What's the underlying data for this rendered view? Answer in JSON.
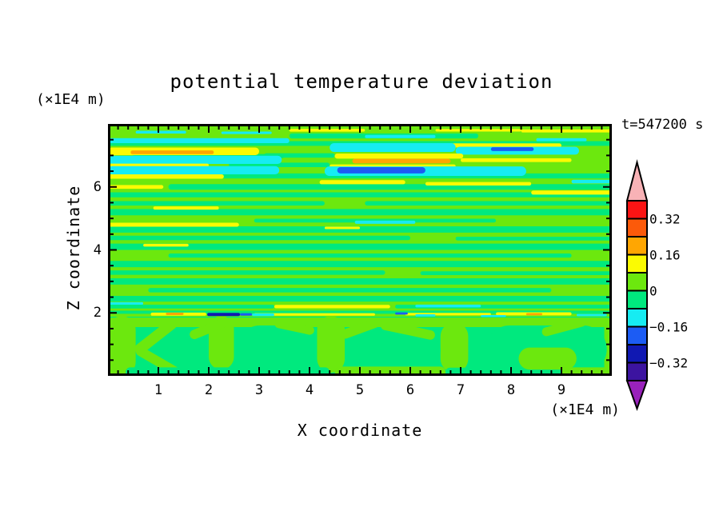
{
  "chart_data": {
    "type": "heatmap",
    "title": "potential temperature deviation",
    "time": "t=547200 s",
    "xlabel": "X coordinate",
    "ylabel": "Z coordinate",
    "x_unit": "(×1E4 m)",
    "z_unit": "(×1E4 m)",
    "contour_interval": 0.08,
    "x_axis": {
      "min": 0,
      "max": 10,
      "major_ticks": [
        1,
        2,
        3,
        4,
        5,
        6,
        7,
        8,
        9
      ],
      "minor_step": 0.2
    },
    "z_axis": {
      "min": 0,
      "max": 8,
      "major_ticks": [
        2,
        4,
        6
      ],
      "minor_step": 0.5
    },
    "palette": {
      "red": "#fa1414",
      "orangered": "#fc5a0a",
      "orange": "#ffa602",
      "yellow": "#fbfb02",
      "chartreuse": "#6ce80e",
      "spring": "#00e97e",
      "cyan": "#16ecf2",
      "blue": "#1c5cf4",
      "navy": "#1018b2",
      "indigo": "#3c14a0",
      "pink": "#f8b2b6",
      "purple": "#9922bb"
    },
    "colorbar": {
      "over_arrow_color": "pink",
      "under_arrow_color": "purple",
      "segments": [
        {
          "color": "red",
          "range": [
            0.32,
            0.4
          ],
          "boundary_label": "0.32"
        },
        {
          "color": "orangered",
          "range": [
            0.24,
            0.32
          ],
          "boundary_label": ""
        },
        {
          "color": "orange",
          "range": [
            0.16,
            0.24
          ],
          "boundary_label": "0.16"
        },
        {
          "color": "yellow",
          "range": [
            0.08,
            0.16
          ],
          "boundary_label": ""
        },
        {
          "color": "chartreuse",
          "range": [
            0.0,
            0.08
          ],
          "boundary_label": "0"
        },
        {
          "color": "spring",
          "range": [
            -0.08,
            0.0
          ],
          "boundary_label": ""
        },
        {
          "color": "cyan",
          "range": [
            -0.16,
            -0.08
          ],
          "boundary_label": "−0.16"
        },
        {
          "color": "blue",
          "range": [
            -0.24,
            -0.16
          ],
          "boundary_label": ""
        },
        {
          "color": "navy",
          "range": [
            -0.32,
            -0.24
          ],
          "boundary_label": "−0.32"
        },
        {
          "color": "indigo",
          "range": [
            -0.4,
            -0.32
          ],
          "boundary_label": ""
        }
      ]
    },
    "field": {
      "upper_background": "chartreuse",
      "lower_background": "spring",
      "lower_top_z": 1.88,
      "stripes": [
        [
          7.62,
          0.16,
          3.6,
          7.35
        ],
        [
          7.38,
          0.15,
          0,
          10
        ],
        [
          7.0,
          0.14,
          3.1,
          4.5
        ],
        [
          6.98,
          0.13,
          0.5,
          3.5
        ],
        [
          6.7,
          0.14,
          2.4,
          4.4
        ],
        [
          6.35,
          0.16,
          0,
          10
        ],
        [
          6.0,
          0.18,
          1.2,
          10
        ],
        [
          5.75,
          0.16,
          0,
          10
        ],
        [
          5.48,
          0.14,
          0,
          4.3
        ],
        [
          5.48,
          0.14,
          5.1,
          10
        ],
        [
          5.2,
          0.2,
          0,
          10
        ],
        [
          4.93,
          0.12,
          2.9,
          7.7
        ],
        [
          4.65,
          0.2,
          0,
          10
        ],
        [
          4.38,
          0.14,
          0,
          6.0
        ],
        [
          4.36,
          0.12,
          6.9,
          10
        ],
        [
          4.1,
          0.2,
          0,
          10
        ],
        [
          3.82,
          0.13,
          1.2,
          9.2
        ],
        [
          3.55,
          0.2,
          0,
          10
        ],
        [
          3.28,
          0.14,
          0,
          5.5
        ],
        [
          3.26,
          0.12,
          6.2,
          10
        ],
        [
          3.0,
          0.2,
          0,
          10
        ],
        [
          2.72,
          0.14,
          0.8,
          8.8
        ],
        [
          2.45,
          0.18,
          0,
          10
        ],
        [
          2.2,
          0.12,
          0,
          3.3
        ],
        [
          2.2,
          0.12,
          5.7,
          10
        ],
        [
          2.02,
          0.1,
          0,
          10
        ]
      ],
      "lower_shapes": [
        [
          "chartreuse",
          1.7,
          0.3,
          0,
          10,
          0
        ],
        [
          "chartreuse",
          0.95,
          1.9,
          0,
          0.55,
          0
        ],
        [
          "chartreuse",
          1.05,
          1.7,
          2.0,
          2.5,
          0
        ],
        [
          "chartreuse",
          1.0,
          1.8,
          4.15,
          4.7,
          0
        ],
        [
          "chartreuse",
          0.9,
          1.6,
          6.6,
          7.15,
          0
        ],
        [
          "chartreuse",
          0.9,
          1.8,
          9.85,
          10,
          0
        ],
        [
          "spring",
          0.8,
          1.45,
          0.6,
          1.95,
          0
        ],
        [
          "spring",
          0.85,
          1.5,
          2.55,
          4.1,
          0
        ],
        [
          "spring",
          0.8,
          1.15,
          4.95,
          6.6,
          0
        ],
        [
          "spring",
          0.85,
          1.5,
          7.5,
          9.9,
          0
        ],
        [
          "chartreuse",
          1.25,
          0.34,
          0.45,
          1.45,
          -38
        ],
        [
          "chartreuse",
          0.45,
          0.3,
          0.5,
          1.5,
          30
        ],
        [
          "chartreuse",
          1.5,
          0.3,
          1.6,
          2.4,
          -22
        ],
        [
          "chartreuse",
          1.55,
          0.28,
          3.3,
          4.1,
          12
        ],
        [
          "chartreuse",
          1.5,
          0.3,
          4.6,
          5.4,
          -20
        ],
        [
          "chartreuse",
          1.45,
          0.3,
          5.4,
          6.5,
          12
        ],
        [
          "chartreuse",
          1.55,
          0.28,
          8.6,
          9.5,
          -15
        ],
        [
          "spring",
          0.12,
          0.3,
          0.35,
          4.4,
          0
        ],
        [
          "spring",
          0.12,
          0.28,
          6.7,
          8.9,
          0
        ],
        [
          "chartreuse",
          0.55,
          0.7,
          8.15,
          9.3,
          0
        ],
        [
          "chartreuse",
          0.2,
          0.5,
          0,
          0.32,
          0
        ],
        [
          "chartreuse",
          0.12,
          0.35,
          4.5,
          6.7,
          0
        ],
        [
          "chartreuse",
          0.12,
          0.3,
          9.0,
          10,
          0
        ]
      ],
      "overlays": [
        [
          "cyan",
          7.47,
          0.16,
          0,
          3.6
        ],
        [
          "yellow",
          7.13,
          0.24,
          0,
          3.0
        ],
        [
          "orange",
          7.1,
          0.12,
          0.45,
          2.1
        ],
        [
          "cyan",
          6.86,
          0.26,
          0,
          3.45
        ],
        [
          "yellow",
          6.69,
          0.1,
          0,
          2.0
        ],
        [
          "cyan",
          6.53,
          0.26,
          0,
          3.4
        ],
        [
          "yellow",
          6.33,
          0.14,
          0,
          2.3
        ],
        [
          "yellow",
          6.0,
          0.12,
          0,
          1.1
        ],
        [
          "yellow",
          5.33,
          0.1,
          0.9,
          2.2
        ],
        [
          "yellow",
          4.8,
          0.13,
          0,
          2.6
        ],
        [
          "yellow",
          4.15,
          0.09,
          0.7,
          1.6
        ],
        [
          "yellow",
          7.32,
          0.13,
          6.0,
          9.0
        ],
        [
          "cyan",
          7.25,
          0.28,
          4.4,
          6.9
        ],
        [
          "cyan",
          7.15,
          0.25,
          6.9,
          9.35
        ],
        [
          "blue",
          7.2,
          0.12,
          7.6,
          8.45
        ],
        [
          "yellow",
          6.98,
          0.16,
          4.5,
          7.05
        ],
        [
          "orange",
          6.82,
          0.15,
          4.85,
          6.8
        ],
        [
          "yellow",
          6.66,
          0.11,
          4.4,
          6.9
        ],
        [
          "cyan",
          6.5,
          0.3,
          4.3,
          8.3
        ],
        [
          "blue",
          6.53,
          0.2,
          4.55,
          6.3
        ],
        [
          "yellow",
          6.15,
          0.13,
          4.2,
          5.9
        ],
        [
          "yellow",
          6.1,
          0.11,
          6.3,
          8.4
        ],
        [
          "cyan",
          4.88,
          0.1,
          4.9,
          6.1
        ],
        [
          "yellow",
          4.7,
          0.08,
          4.3,
          5.0
        ],
        [
          "yellow",
          7.78,
          0.1,
          8.2,
          10
        ],
        [
          "cyan",
          7.5,
          0.1,
          8.5,
          9.5
        ],
        [
          "yellow",
          6.85,
          0.12,
          7.0,
          9.2
        ],
        [
          "cyan",
          6.17,
          0.12,
          9.2,
          10
        ],
        [
          "yellow",
          5.82,
          0.13,
          8.4,
          10
        ],
        [
          "yellow",
          7.8,
          0.09,
          3.6,
          5.1
        ],
        [
          "yellow",
          7.8,
          0.08,
          6.5,
          8.2
        ],
        [
          "cyan",
          7.74,
          0.09,
          0.55,
          1.55
        ],
        [
          "cyan",
          7.72,
          0.08,
          2.25,
          3.25
        ],
        [
          "cyan",
          7.6,
          0.1,
          5.1,
          6.5
        ],
        [
          "yellow",
          2.2,
          0.11,
          3.3,
          5.6
        ],
        [
          "cyan",
          2.22,
          0.09,
          6.1,
          7.4
        ],
        [
          "cyan",
          2.3,
          0.08,
          0,
          0.7
        ],
        [
          "yellow",
          1.96,
          0.1,
          0.85,
          1.95
        ],
        [
          "orange",
          1.97,
          0.08,
          1.15,
          1.5
        ],
        [
          "yellow",
          1.95,
          0.08,
          2.9,
          5.3
        ],
        [
          "yellow",
          1.96,
          0.08,
          5.9,
          7.6
        ],
        [
          "yellow",
          1.97,
          0.1,
          7.7,
          9.2
        ],
        [
          "orange",
          1.96,
          0.07,
          8.3,
          8.62
        ],
        [
          "navy",
          1.95,
          0.1,
          1.97,
          2.62
        ],
        [
          "blue",
          1.95,
          0.08,
          2.62,
          2.86
        ],
        [
          "cyan",
          1.94,
          0.08,
          2.86,
          3.3
        ],
        [
          "blue",
          1.98,
          0.07,
          5.7,
          5.95
        ],
        [
          "cyan",
          1.92,
          0.07,
          6.1,
          6.5
        ],
        [
          "cyan",
          1.9,
          0.06,
          7.4,
          7.9
        ],
        [
          "cyan",
          1.93,
          0.07,
          9.3,
          9.9
        ]
      ]
    }
  }
}
